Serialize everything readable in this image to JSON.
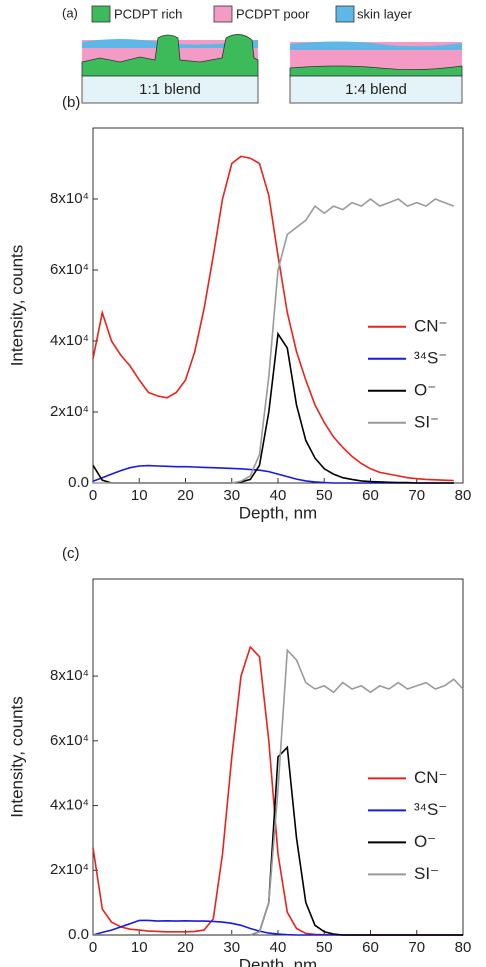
{
  "panel_a": {
    "label": "(a)",
    "legend": [
      "PCDPT rich",
      "PCDPT poor",
      "skin layer"
    ],
    "blends": [
      "1:1 blend",
      "1:4 blend"
    ]
  },
  "chart_data": [
    {
      "type": "line",
      "label": "(b)",
      "xlabel": "Depth, nm",
      "ylabel": "Intensity, counts",
      "legend": "right",
      "xlim": [
        0,
        80
      ],
      "xticks": [
        0,
        10,
        20,
        30,
        40,
        50,
        60,
        70,
        80
      ],
      "ylim": [
        0,
        100000
      ],
      "yticks": [
        {
          "value": 0,
          "label": "0.0"
        },
        {
          "value": 20000,
          "label": "2x10⁴"
        },
        {
          "value": 40000,
          "label": "4x10⁴"
        },
        {
          "value": 60000,
          "label": "6x10⁴"
        },
        {
          "value": 80000,
          "label": "8x10⁴"
        }
      ],
      "x": [
        0,
        2,
        4,
        6,
        8,
        10,
        12,
        14,
        16,
        18,
        20,
        22,
        24,
        26,
        28,
        30,
        32,
        34,
        36,
        38,
        40,
        42,
        44,
        46,
        48,
        50,
        52,
        54,
        56,
        58,
        60,
        62,
        64,
        66,
        68,
        70,
        72,
        74,
        76,
        78
      ],
      "series": [
        {
          "name": "CN⁻",
          "color": "#e8231d",
          "values": [
            35000,
            48000,
            40000,
            36000,
            33000,
            29000,
            25500,
            24500,
            24000,
            25500,
            29000,
            37000,
            49000,
            64000,
            80000,
            90000,
            92000,
            91500,
            90000,
            81000,
            64000,
            48000,
            37000,
            29000,
            22000,
            17000,
            13000,
            10000,
            7500,
            5500,
            4000,
            3000,
            2500,
            2000,
            1500,
            1200,
            1000,
            900,
            800,
            700
          ]
        },
        {
          "name": "³⁴S⁻",
          "color": "#1a1ad9",
          "values": [
            500,
            1500,
            2500,
            3500,
            4300,
            4800,
            4900,
            4800,
            4700,
            4600,
            4600,
            4500,
            4400,
            4300,
            4200,
            4100,
            4000,
            3800,
            3600,
            3200,
            2500,
            1800,
            1100,
            600,
            300,
            100,
            0,
            0,
            0,
            0,
            0,
            0,
            0,
            0,
            0,
            0,
            0,
            0,
            0,
            0
          ]
        },
        {
          "name": "O⁻",
          "color": "#000000",
          "values": [
            5000,
            800,
            0,
            0,
            0,
            0,
            0,
            0,
            0,
            0,
            0,
            0,
            0,
            0,
            0,
            0,
            300,
            1000,
            5000,
            20000,
            42000,
            38000,
            22000,
            12000,
            7000,
            4000,
            2500,
            1500,
            1000,
            600,
            400,
            300,
            200,
            100,
            100,
            0,
            0,
            0,
            0,
            0
          ]
        },
        {
          "name": "SI⁻",
          "color": "#9a9a9a",
          "values": [
            0,
            0,
            0,
            0,
            0,
            0,
            0,
            0,
            0,
            0,
            0,
            0,
            0,
            0,
            0,
            0,
            500,
            2000,
            8000,
            30000,
            60000,
            70000,
            72000,
            74000,
            78000,
            76000,
            78000,
            77000,
            79000,
            78000,
            80000,
            78000,
            79000,
            80000,
            78000,
            79000,
            78000,
            80000,
            79000,
            78000
          ]
        }
      ]
    },
    {
      "type": "line",
      "label": "(c)",
      "xlabel": "Depth, nm",
      "ylabel": "Intensity, counts",
      "legend": "right",
      "xlim": [
        0,
        80
      ],
      "xticks": [
        0,
        10,
        20,
        30,
        40,
        50,
        60,
        70,
        80
      ],
      "ylim": [
        0,
        110000
      ],
      "yticks": [
        {
          "value": 0,
          "label": "0.0"
        },
        {
          "value": 20000,
          "label": "2x10⁴"
        },
        {
          "value": 40000,
          "label": "4x10⁴"
        },
        {
          "value": 60000,
          "label": "6x10⁴"
        },
        {
          "value": 80000,
          "label": "8x10⁴"
        }
      ],
      "x": [
        0,
        2,
        4,
        6,
        8,
        10,
        12,
        14,
        16,
        18,
        20,
        22,
        24,
        26,
        28,
        30,
        32,
        34,
        36,
        38,
        40,
        42,
        44,
        46,
        48,
        50,
        52,
        54,
        56,
        58,
        60,
        62,
        64,
        66,
        68,
        70,
        72,
        74,
        76,
        78,
        80
      ],
      "series": [
        {
          "name": "CN⁻",
          "color": "#e8231d",
          "values": [
            27000,
            8000,
            4000,
            2500,
            1800,
            1500,
            1200,
            1100,
            1000,
            1000,
            1000,
            1100,
            1500,
            5000,
            25000,
            55000,
            80000,
            89000,
            86000,
            60000,
            25000,
            7000,
            2000,
            500,
            200,
            100,
            100,
            0,
            0,
            0,
            0,
            0,
            0,
            0,
            0,
            0,
            0,
            0,
            0,
            0,
            0
          ]
        },
        {
          "name": "³⁴S⁻",
          "color": "#1a1ad9",
          "values": [
            0,
            800,
            1500,
            2500,
            3500,
            4500,
            4500,
            4300,
            4400,
            4300,
            4400,
            4300,
            4300,
            4200,
            4000,
            3600,
            3000,
            2000,
            1200,
            600,
            300,
            100,
            0,
            0,
            0,
            0,
            0,
            0,
            0,
            0,
            0,
            0,
            0,
            0,
            0,
            0,
            0,
            0,
            0,
            0,
            0
          ]
        },
        {
          "name": "O⁻",
          "color": "#000000",
          "values": [
            0,
            0,
            0,
            0,
            0,
            0,
            0,
            0,
            0,
            0,
            0,
            0,
            0,
            0,
            0,
            0,
            0,
            0,
            1000,
            10000,
            55000,
            58000,
            30000,
            10000,
            3000,
            1000,
            300,
            0,
            0,
            0,
            0,
            0,
            0,
            0,
            0,
            0,
            0,
            0,
            0,
            0,
            0
          ]
        },
        {
          "name": "SI⁻",
          "color": "#9a9a9a",
          "values": [
            0,
            0,
            0,
            0,
            0,
            0,
            0,
            0,
            0,
            0,
            0,
            0,
            0,
            0,
            0,
            0,
            0,
            0,
            1000,
            10000,
            45000,
            88000,
            85000,
            78000,
            76000,
            77000,
            75000,
            78000,
            76000,
            77000,
            75000,
            77000,
            76000,
            78000,
            76000,
            77000,
            78000,
            76000,
            77000,
            79000,
            76000
          ]
        }
      ]
    }
  ]
}
